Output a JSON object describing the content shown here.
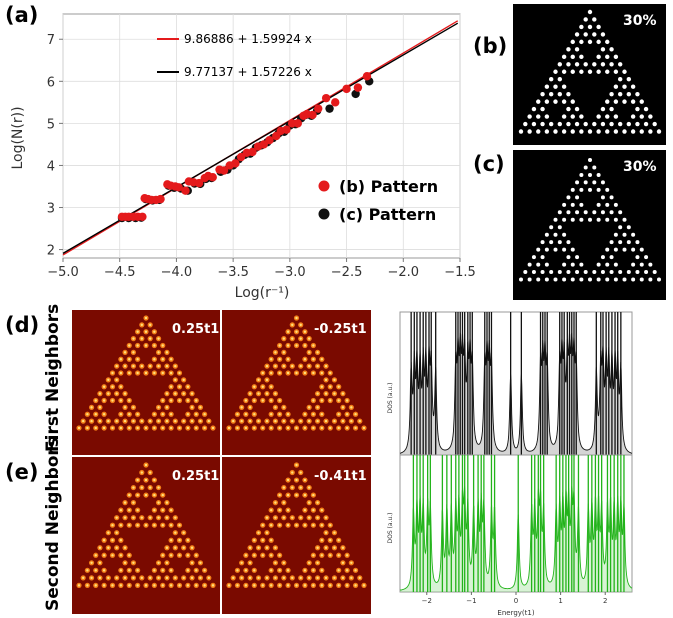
{
  "panel_labels": {
    "a": "(a)",
    "b": "(b)",
    "c": "(c)",
    "d": "(d)",
    "e": "(e)"
  },
  "row_labels": {
    "d": "First Neighbors",
    "e": "Second Neighbors"
  },
  "percent_labels": {
    "b": "30%",
    "c": "30%"
  },
  "hopping_labels": {
    "d_left": "0.25t1",
    "d_right": "-0.25t1",
    "e_left": "0.25t1",
    "e_right": "-0.41t1"
  },
  "colors": {
    "red": "#e41a1c",
    "black": "#111111",
    "green": "#22b31a",
    "ldos_bg": "#7a0a00",
    "fit_red": "#e41a1c",
    "fit_black": "#000000"
  },
  "chart_data": [
    {
      "type": "scatter",
      "panel": "a",
      "xlabel": "Log(r⁻¹)",
      "ylabel": "Log(N(r))",
      "xlim": [
        -5.0,
        -1.5
      ],
      "ylim": [
        1.8,
        7.6
      ],
      "xticks": [
        "−5.0",
        "−4.5",
        "−4.0",
        "−3.5",
        "−3.0",
        "−2.5",
        "−2.0",
        "−1.5"
      ],
      "yticks": [
        "2",
        "3",
        "4",
        "5",
        "6",
        "7"
      ],
      "fits": [
        {
          "label": "9.86886 + 1.59924 x",
          "intercept": 9.86886,
          "slope": 1.59924,
          "color": "#e41a1c"
        },
        {
          "label": "9.77137 + 1.57226 x",
          "intercept": 9.77137,
          "slope": 1.57226,
          "color": "#000000"
        }
      ],
      "legend_position": "middle-right",
      "series": [
        {
          "name": "(b) Pattern",
          "color": "#e41a1c",
          "points": [
            [
              -4.48,
              2.78
            ],
            [
              -4.45,
              2.78
            ],
            [
              -4.42,
              2.78
            ],
            [
              -4.38,
              2.78
            ],
            [
              -4.34,
              2.78
            ],
            [
              -4.3,
              2.78
            ],
            [
              -4.28,
              3.22
            ],
            [
              -4.25,
              3.2
            ],
            [
              -4.22,
              3.18
            ],
            [
              -4.18,
              3.18
            ],
            [
              -4.14,
              3.2
            ],
            [
              -4.08,
              3.55
            ],
            [
              -4.05,
              3.52
            ],
            [
              -4.01,
              3.5
            ],
            [
              -3.98,
              3.48
            ],
            [
              -3.92,
              3.4
            ],
            [
              -3.89,
              3.62
            ],
            [
              -3.85,
              3.6
            ],
            [
              -3.8,
              3.58
            ],
            [
              -3.75,
              3.7
            ],
            [
              -3.72,
              3.75
            ],
            [
              -3.68,
              3.72
            ],
            [
              -3.62,
              3.9
            ],
            [
              -3.58,
              3.88
            ],
            [
              -3.53,
              4.0
            ],
            [
              -3.48,
              4.05
            ],
            [
              -3.43,
              4.2
            ],
            [
              -3.38,
              4.3
            ],
            [
              -3.33,
              4.32
            ],
            [
              -3.28,
              4.45
            ],
            [
              -3.23,
              4.5
            ],
            [
              -3.18,
              4.6
            ],
            [
              -3.12,
              4.7
            ],
            [
              -3.08,
              4.82
            ],
            [
              -3.03,
              4.85
            ],
            [
              -2.98,
              5.0
            ],
            [
              -2.93,
              5.0
            ],
            [
              -2.88,
              5.18
            ],
            [
              -2.85,
              5.22
            ],
            [
              -2.8,
              5.2
            ],
            [
              -2.75,
              5.35
            ],
            [
              -2.68,
              5.6
            ],
            [
              -2.6,
              5.5
            ],
            [
              -2.5,
              5.82
            ],
            [
              -2.4,
              5.85
            ],
            [
              -2.32,
              6.12
            ]
          ]
        },
        {
          "name": "(c) Pattern",
          "color": "#111111",
          "points": [
            [
              -4.48,
              2.75
            ],
            [
              -4.42,
              2.75
            ],
            [
              -4.36,
              2.75
            ],
            [
              -4.31,
              2.76
            ],
            [
              -4.27,
              3.2
            ],
            [
              -4.21,
              3.17
            ],
            [
              -4.15,
              3.18
            ],
            [
              -4.07,
              3.52
            ],
            [
              -4.02,
              3.47
            ],
            [
              -3.96,
              3.45
            ],
            [
              -3.9,
              3.4
            ],
            [
              -3.84,
              3.57
            ],
            [
              -3.79,
              3.56
            ],
            [
              -3.74,
              3.68
            ],
            [
              -3.69,
              3.7
            ],
            [
              -3.61,
              3.85
            ],
            [
              -3.55,
              3.9
            ],
            [
              -3.5,
              4.0
            ],
            [
              -3.45,
              4.15
            ],
            [
              -3.4,
              4.25
            ],
            [
              -3.35,
              4.28
            ],
            [
              -3.3,
              4.42
            ],
            [
              -3.25,
              4.48
            ],
            [
              -3.2,
              4.55
            ],
            [
              -3.15,
              4.65
            ],
            [
              -3.1,
              4.76
            ],
            [
              -3.05,
              4.8
            ],
            [
              -3.0,
              4.95
            ],
            [
              -2.95,
              4.98
            ],
            [
              -2.9,
              5.12
            ],
            [
              -2.86,
              5.2
            ],
            [
              -2.81,
              5.18
            ],
            [
              -2.76,
              5.3
            ],
            [
              -2.65,
              5.35
            ],
            [
              -2.42,
              5.7
            ],
            [
              -2.3,
              6.0
            ]
          ]
        }
      ]
    },
    {
      "type": "area",
      "panel": "d",
      "xlabel": "",
      "ylabel": "DOS (a.u.)",
      "xlim": [
        -2.6,
        2.6
      ],
      "color": "#111111",
      "peaks": [
        -2.35,
        -2.28,
        -2.22,
        -2.15,
        -2.08,
        -2.02,
        -1.95,
        -1.9,
        -1.8,
        -1.35,
        -1.3,
        -1.25,
        -1.2,
        -1.15,
        -1.08,
        -1.03,
        -0.98,
        -0.7,
        -0.65,
        -0.6,
        -0.55,
        -0.12,
        0.12,
        0.55,
        0.6,
        0.65,
        0.7,
        0.98,
        1.03,
        1.08,
        1.15,
        1.2,
        1.25,
        1.3,
        1.35,
        1.8,
        1.9,
        1.95,
        2.02,
        2.08,
        2.15,
        2.22,
        2.28,
        2.35
      ]
    },
    {
      "type": "area",
      "panel": "e",
      "xlabel": "Energy(t1)",
      "ylabel": "DOS (a.u.)",
      "xlim": [
        -2.6,
        2.6
      ],
      "xticks": [
        "−2",
        "−1",
        "0",
        "1",
        "2"
      ],
      "color": "#22b31a",
      "peaks": [
        -2.3,
        -2.22,
        -2.15,
        -2.08,
        -1.98,
        -1.92,
        -1.65,
        -1.55,
        -1.45,
        -1.35,
        -1.28,
        -1.2,
        -1.15,
        -1.08,
        -0.95,
        -0.85,
        -0.78,
        -0.72,
        -0.55,
        -0.48,
        0.05,
        0.35,
        0.42,
        0.5,
        0.55,
        0.62,
        0.9,
        0.98,
        1.05,
        1.12,
        1.18,
        1.25,
        1.3,
        1.4,
        1.62,
        1.7,
        1.78,
        1.85,
        1.92,
        2.05,
        2.12,
        2.2,
        2.28,
        2.35,
        2.42
      ]
    }
  ]
}
